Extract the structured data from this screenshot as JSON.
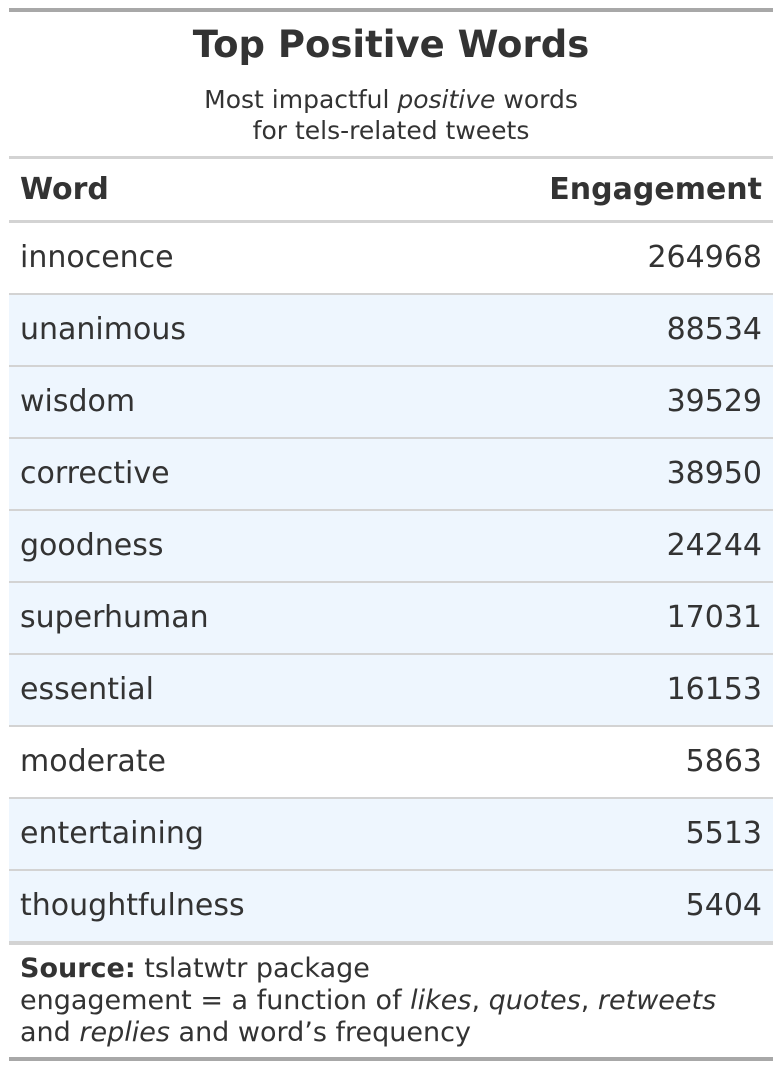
{
  "chart_data": {
    "type": "table",
    "title": "Top Positive Words",
    "subtitle": {
      "line1_pre": "Most impactful ",
      "line1_em": "positive",
      "line1_post": " words",
      "line2": "for tels-related tweets"
    },
    "columns": [
      "Word",
      "Engagement"
    ],
    "rows": [
      {
        "word": "innocence",
        "engagement": "264968",
        "highlight": false
      },
      {
        "word": "unanimous",
        "engagement": "88534",
        "highlight": true
      },
      {
        "word": "wisdom",
        "engagement": "39529",
        "highlight": true
      },
      {
        "word": "corrective",
        "engagement": "38950",
        "highlight": true
      },
      {
        "word": "goodness",
        "engagement": "24244",
        "highlight": true
      },
      {
        "word": "superhuman",
        "engagement": "17031",
        "highlight": true
      },
      {
        "word": "essential",
        "engagement": "16153",
        "highlight": true
      },
      {
        "word": "moderate",
        "engagement": "5863",
        "highlight": false
      },
      {
        "word": "entertaining",
        "engagement": "5513",
        "highlight": true
      },
      {
        "word": "thoughtfulness",
        "engagement": "5404",
        "highlight": true
      }
    ],
    "source": {
      "label": "Source:",
      "text": " tslatwtr package",
      "note_pre": "engagement = a function of ",
      "likes": "likes",
      "comma1": ", ",
      "quotes": "quotes",
      "comma2": ", ",
      "retweets": "retweets",
      "line3_pre": "and ",
      "replies": "replies",
      "line3_post": " and word’s frequency"
    }
  },
  "colors": {
    "text": "#333333",
    "highlight_row": "#eef6fe",
    "rule_dark": "#a8a8a8",
    "rule_light": "#d3d3d3"
  }
}
